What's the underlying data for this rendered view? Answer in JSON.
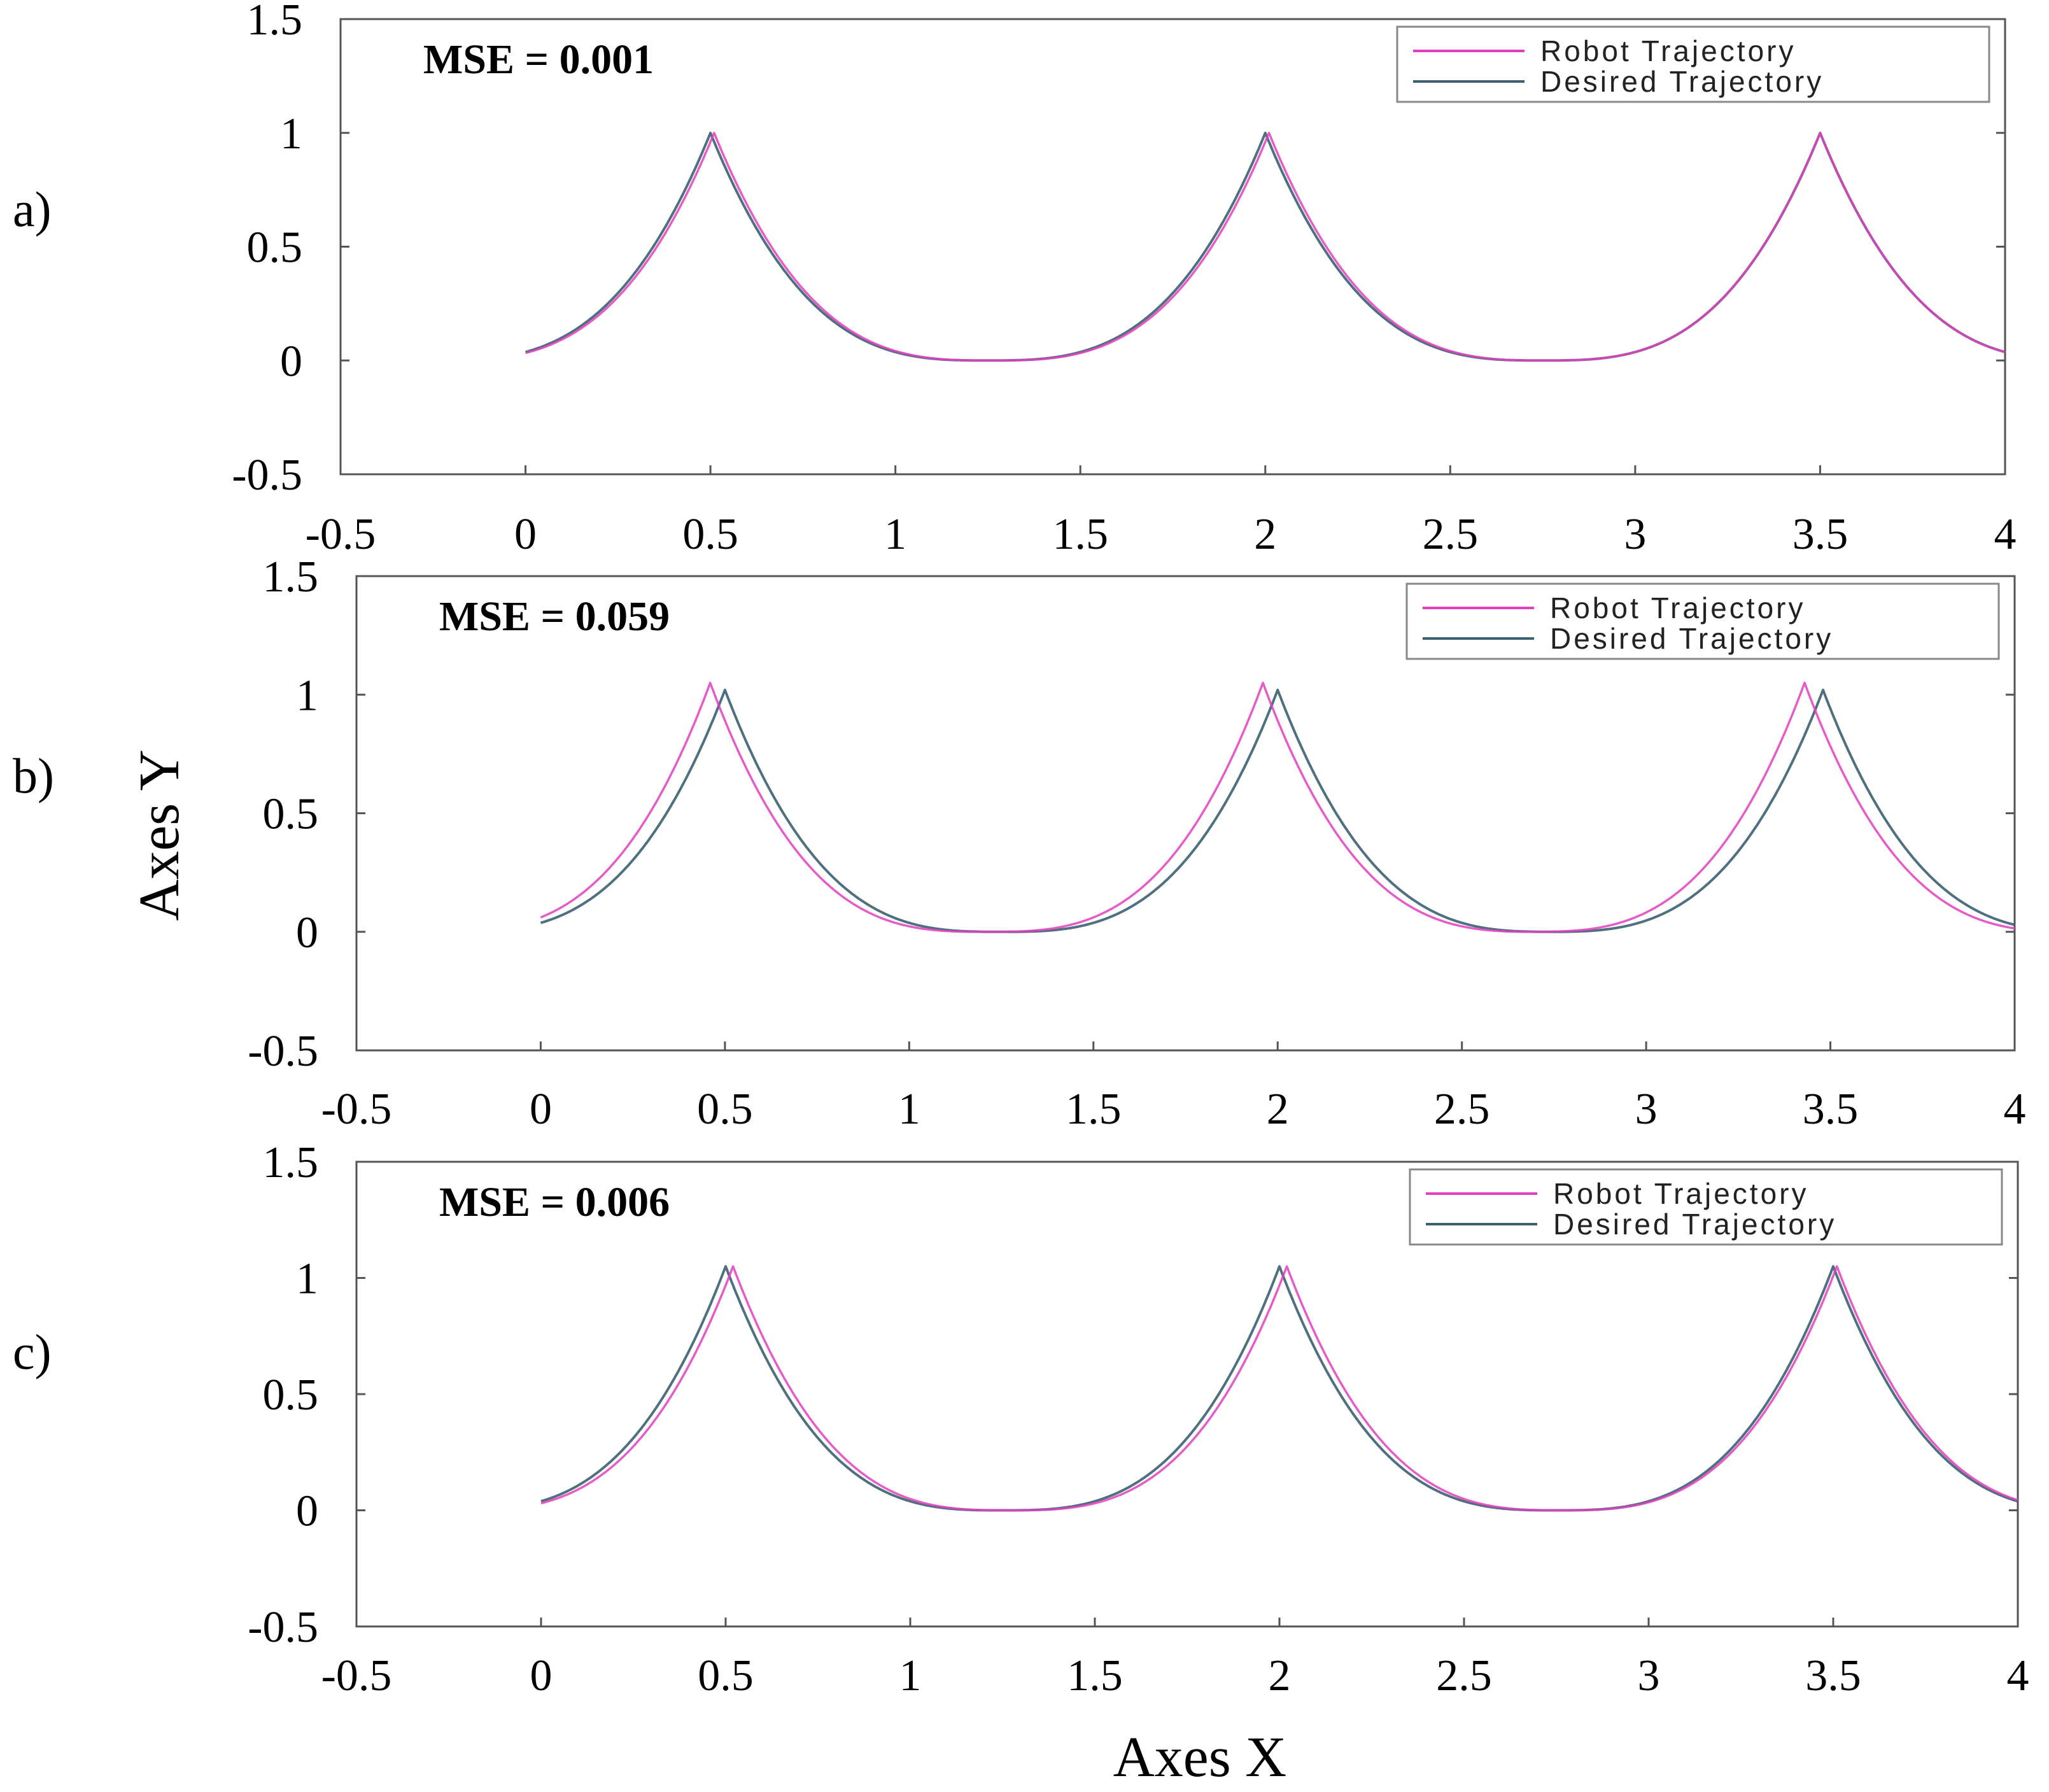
{
  "figure": {
    "xlabel": "Axes X",
    "ylabel": "Axes Y",
    "colors": {
      "robot": "#e040c0",
      "desired": "#3c6070",
      "axis": "#555555",
      "legend_border": "#888888"
    }
  },
  "chart_data": [
    {
      "type": "line",
      "panel_label": "a)",
      "mse_text": "MSE = 0.001",
      "xlim": [
        -0.5,
        4
      ],
      "ylim": [
        -0.5,
        1.5
      ],
      "xticks": [
        -0.5,
        0,
        0.5,
        1,
        1.5,
        2,
        2.5,
        3,
        3.5,
        4
      ],
      "xtick_labels": [
        "-0.5",
        "0",
        "0.5",
        "1",
        "1.5",
        "2",
        "2.5",
        "3",
        "3.5",
        "4"
      ],
      "yticks": [
        -0.5,
        0,
        0.5,
        1,
        1.5
      ],
      "ytick_labels": [
        "-0.5",
        "0",
        "0.5",
        "1",
        "1.5"
      ],
      "legend_position": "top-right",
      "series": [
        {
          "name": "Robot Trajectory",
          "key": "robot",
          "cusps": [
            0.51,
            2.01,
            3.5
          ],
          "peak_y": 1.0
        },
        {
          "name": "Desired Trajectory",
          "key": "desired",
          "cusps": [
            0.5,
            2.0,
            3.5
          ],
          "peak_y": 1.0
        }
      ],
      "x_start": 0,
      "x_end": 4
    },
    {
      "type": "line",
      "panel_label": "b)",
      "mse_text": "MSE = 0.059",
      "xlim": [
        -0.5,
        4
      ],
      "ylim": [
        -0.5,
        1.5
      ],
      "xticks": [
        -0.5,
        0,
        0.5,
        1,
        1.5,
        2,
        2.5,
        3,
        3.5,
        4
      ],
      "xtick_labels": [
        "-0.5",
        "0",
        "0.5",
        "1",
        "1.5",
        "2",
        "2.5",
        "3",
        "3.5",
        "4"
      ],
      "yticks": [
        -0.5,
        0,
        0.5,
        1,
        1.5
      ],
      "ytick_labels": [
        "-0.5",
        "0",
        "0.5",
        "1",
        "1.5"
      ],
      "legend_position": "top-right",
      "series": [
        {
          "name": "Robot Trajectory",
          "key": "robot",
          "cusps": [
            0.46,
            1.96,
            3.43
          ],
          "peak_y": 1.05
        },
        {
          "name": "Desired Trajectory",
          "key": "desired",
          "cusps": [
            0.5,
            2.0,
            3.48
          ],
          "peak_y": 1.02
        }
      ],
      "x_start": 0,
      "x_end": 4
    },
    {
      "type": "line",
      "panel_label": "c)",
      "mse_text": "MSE = 0.006",
      "xlim": [
        -0.5,
        4
      ],
      "ylim": [
        -0.5,
        1.5
      ],
      "xticks": [
        -0.5,
        0,
        0.5,
        1,
        1.5,
        2,
        2.5,
        3,
        3.5,
        4
      ],
      "xtick_labels": [
        "-0.5",
        "0",
        "0.5",
        "1",
        "1.5",
        "2",
        "2.5",
        "3",
        "3.5",
        "4"
      ],
      "yticks": [
        -0.5,
        0,
        0.5,
        1,
        1.5
      ],
      "ytick_labels": [
        "-0.5",
        "0",
        "0.5",
        "1",
        "1.5"
      ],
      "legend_position": "top-right",
      "series": [
        {
          "name": "Robot Trajectory",
          "key": "robot",
          "cusps": [
            0.52,
            2.02,
            3.51
          ],
          "peak_y": 1.05
        },
        {
          "name": "Desired Trajectory",
          "key": "desired",
          "cusps": [
            0.5,
            2.0,
            3.5
          ],
          "peak_y": 1.05
        }
      ],
      "x_start": 0,
      "x_end": 4
    }
  ]
}
